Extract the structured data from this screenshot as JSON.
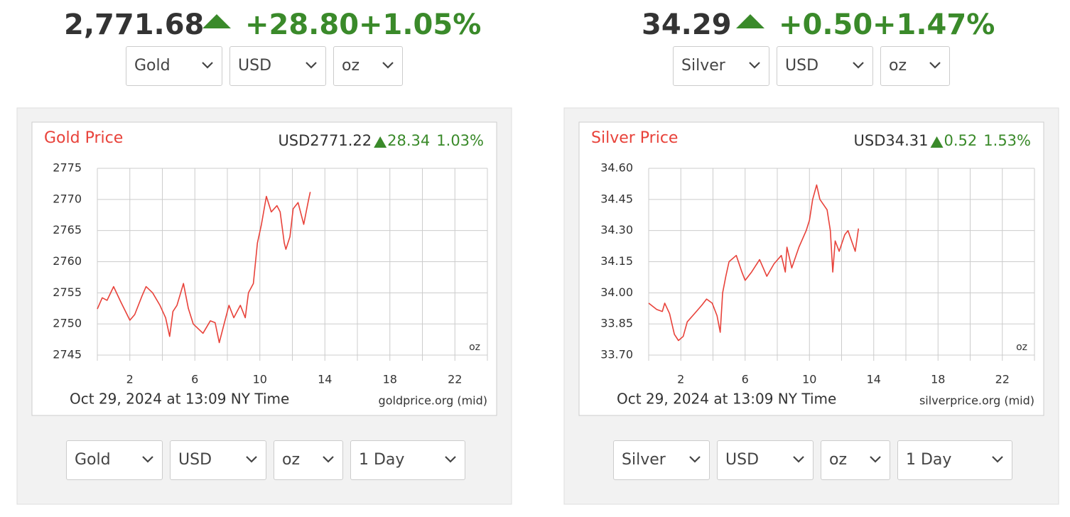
{
  "panels": [
    {
      "price": "2,771.68",
      "change": "+28.80",
      "change_pct": "+1.05%",
      "selects": [
        "Gold",
        "USD",
        "oz"
      ],
      "bottom_selects": [
        "Gold",
        "USD",
        "oz",
        "1 Day"
      ]
    },
    {
      "price": "34.29",
      "change": "+0.50",
      "change_pct": "+1.47%",
      "selects": [
        "Silver",
        "USD",
        "oz"
      ],
      "bottom_selects": [
        "Silver",
        "USD",
        "oz",
        "1 Day"
      ]
    }
  ],
  "chart_data": [
    {
      "type": "line",
      "title": "Gold Price",
      "price_label": "USD2771.22",
      "change": "28.34",
      "change_pct": "1.03%",
      "unit": "oz",
      "footer_date": "Oct 29, 2024 at 13:09 NY Time",
      "source": "goldprice.org (mid)",
      "color": "#e8423a",
      "grid": true,
      "x": [
        0,
        0.3,
        0.6,
        1.0,
        1.45,
        2.0,
        2.3,
        2.75,
        3.0,
        3.4,
        3.85,
        4.2,
        4.45,
        4.65,
        4.9,
        5.3,
        5.6,
        5.9,
        6.5,
        6.95,
        7.25,
        7.5,
        7.8,
        8.1,
        8.4,
        8.8,
        9.1,
        9.3,
        9.6,
        9.85,
        10.1,
        10.4,
        10.7,
        11.05,
        11.25,
        11.5,
        11.6,
        11.85,
        12.05,
        12.35,
        12.7,
        13.0,
        13.1
      ],
      "values": [
        2752.4,
        2754.2,
        2753.8,
        2756,
        2753.5,
        2750.6,
        2751.5,
        2754.5,
        2756,
        2755,
        2753,
        2751,
        2748,
        2752,
        2753,
        2756.5,
        2752.5,
        2750,
        2748.5,
        2750.5,
        2750.2,
        2747,
        2750,
        2753,
        2751,
        2753,
        2751,
        2755,
        2756.5,
        2763,
        2766,
        2770.5,
        2768,
        2769,
        2768,
        2763,
        2762,
        2764,
        2768.5,
        2769.5,
        2766,
        2770,
        2771.2
      ],
      "xlim": [
        0,
        24
      ],
      "xticks": [
        2,
        6,
        10,
        14,
        18,
        22
      ],
      "xminor": [
        0,
        4,
        8,
        12,
        16,
        20,
        24
      ],
      "ylim": [
        2745,
        2775
      ],
      "yticks": [
        2745,
        2750,
        2755,
        2760,
        2765,
        2770,
        2775
      ]
    },
    {
      "type": "line",
      "title": "Silver Price",
      "price_label": "USD34.31",
      "change": "0.52",
      "change_pct": "1.53%",
      "unit": "oz",
      "footer_date": "Oct 29, 2024 at 13:09 NY Time",
      "source": "silverprice.org (mid)",
      "color": "#e8423a",
      "grid": true,
      "x": [
        0,
        0.5,
        0.85,
        1.0,
        1.3,
        1.6,
        1.85,
        2.15,
        2.4,
        2.85,
        3.3,
        3.6,
        3.95,
        4.25,
        4.45,
        4.6,
        4.8,
        5.0,
        5.45,
        5.8,
        6.0,
        6.4,
        6.9,
        7.35,
        7.8,
        8.25,
        8.5,
        8.6,
        8.9,
        9.35,
        9.8,
        10.0,
        10.2,
        10.45,
        10.65,
        11.1,
        11.3,
        11.45,
        11.6,
        11.85,
        12.2,
        12.4,
        12.85,
        13.05
      ],
      "values": [
        33.95,
        33.92,
        33.91,
        33.95,
        33.9,
        33.8,
        33.77,
        33.79,
        33.86,
        33.9,
        33.94,
        33.97,
        33.95,
        33.89,
        33.81,
        34.0,
        34.08,
        34.15,
        34.18,
        34.1,
        34.06,
        34.1,
        34.16,
        34.08,
        34.14,
        34.18,
        34.1,
        34.22,
        34.12,
        34.22,
        34.3,
        34.35,
        34.45,
        34.52,
        34.45,
        34.4,
        34.3,
        34.1,
        34.25,
        34.2,
        34.28,
        34.3,
        34.2,
        34.31
      ],
      "xlim": [
        0,
        24
      ],
      "xticks": [
        2,
        6,
        10,
        14,
        18,
        22
      ],
      "xminor": [
        0,
        4,
        8,
        12,
        16,
        20,
        24
      ],
      "ylim": [
        33.7,
        34.6
      ],
      "yticks": [
        {
          "value": 33.7,
          "label": "33.70"
        },
        33.85,
        {
          "value": 34,
          "label": "34.00"
        },
        34.15,
        {
          "value": 34.3,
          "label": "34.30"
        },
        34.45,
        {
          "value": 34.6,
          "label": "34.60"
        }
      ]
    }
  ]
}
